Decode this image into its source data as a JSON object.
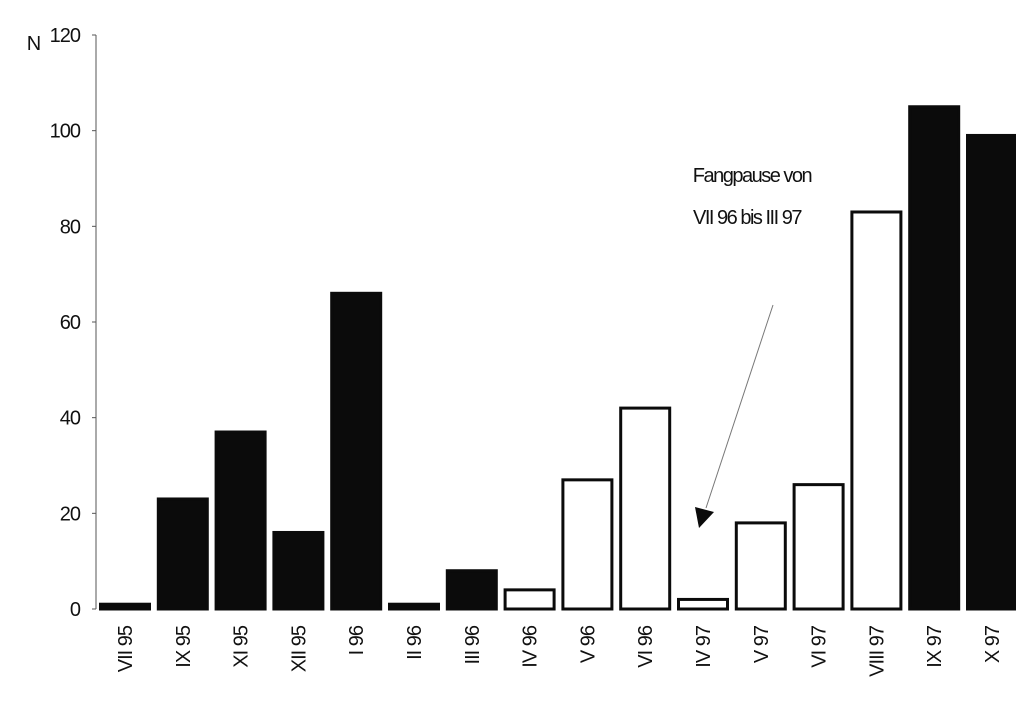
{
  "chart_data": {
    "type": "bar",
    "ylabel": "N",
    "ylim": [
      0,
      120
    ],
    "yticks": [
      0,
      20,
      40,
      60,
      80,
      100,
      120
    ],
    "grid": false,
    "categories": [
      "VII 95",
      "IX 95",
      "XI 95",
      "XII 95",
      "I 96",
      "II 96",
      "III 96",
      "IV 96",
      "V 96",
      "VI 96",
      "IV 97",
      "V 97",
      "VI 97",
      "VIII 97",
      "IX 97",
      "X 97"
    ],
    "values": [
      1,
      23,
      37,
      16,
      66,
      1,
      8,
      4,
      27,
      42,
      2,
      18,
      26,
      83,
      105,
      99
    ],
    "fill": [
      "filled",
      "filled",
      "filled",
      "filled",
      "filled",
      "filled",
      "filled",
      "open",
      "open",
      "open",
      "open",
      "open",
      "open",
      "open",
      "filled",
      "filled"
    ],
    "colors": {
      "filled": "#0b0b0b",
      "open": "#ffffff",
      "stroke": "#0b0b0b",
      "annotation_line": "#777777"
    },
    "annotation": {
      "lines": [
        "Fangpause von",
        "VII 96 bis III 97"
      ],
      "points_to": "IV 97"
    }
  }
}
